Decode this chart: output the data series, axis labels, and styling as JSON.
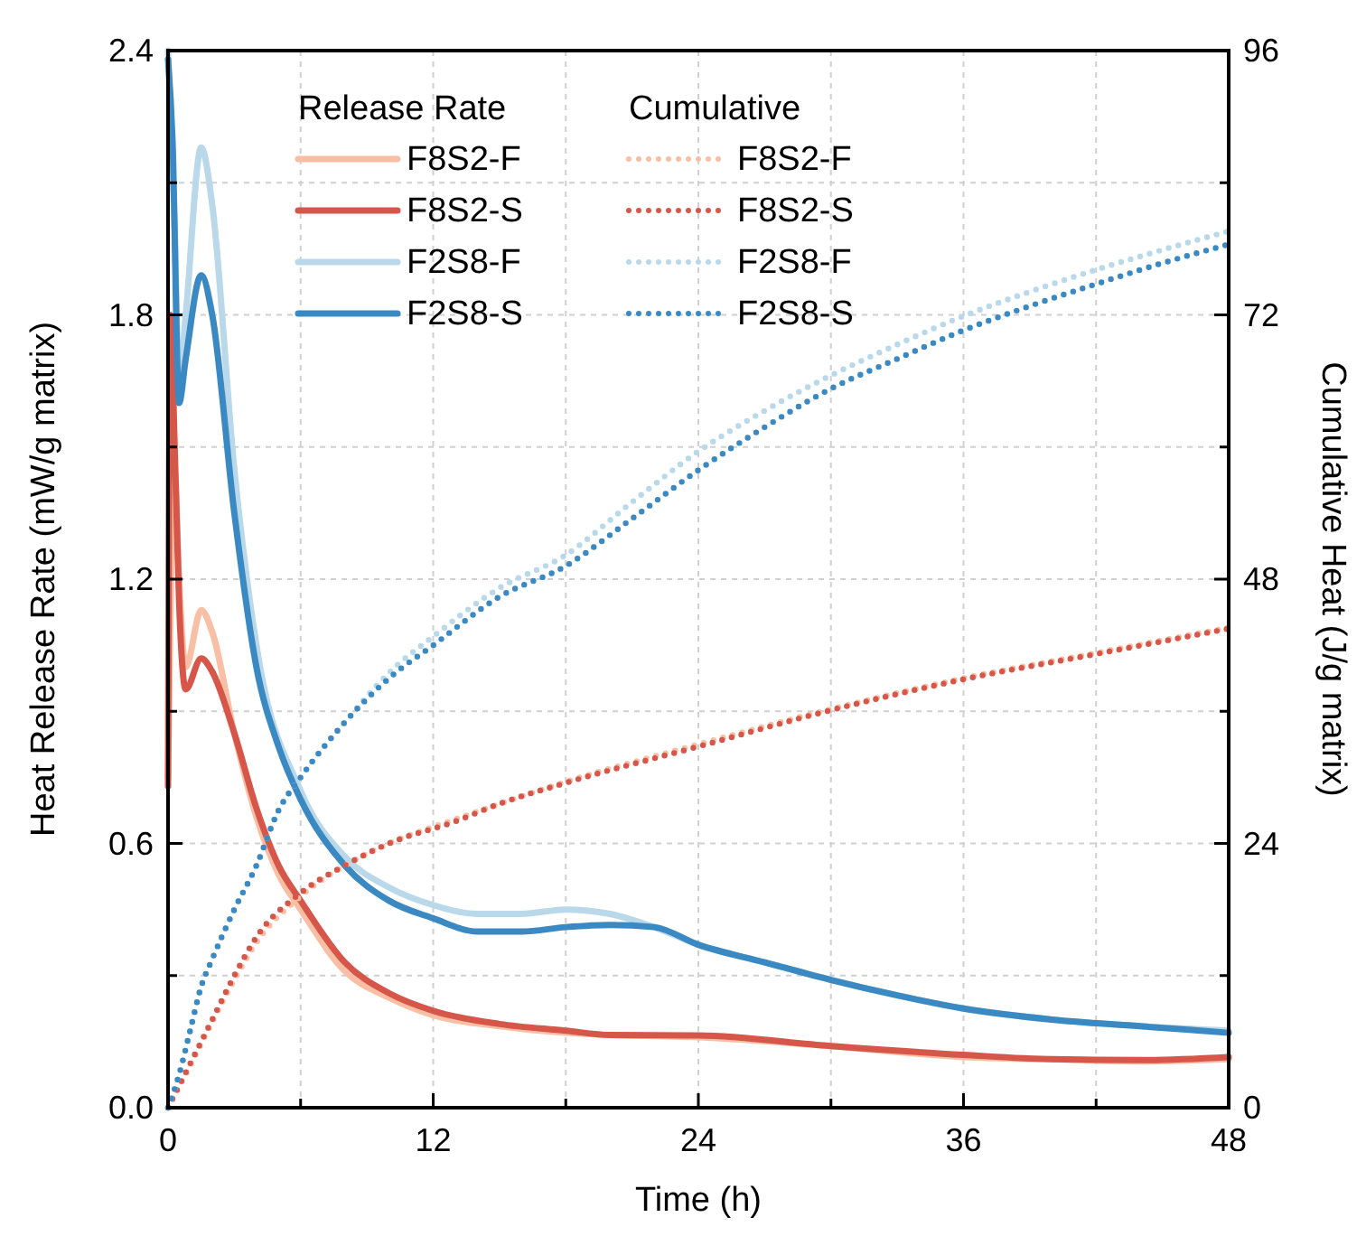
{
  "chart_data": {
    "type": "line",
    "xlabel": "Time (h)",
    "ylabel": "Heat Release Rate (mW/g matrix)",
    "y2label": "Cumulative Heat (J/g matrix)",
    "legend_title": "Release Rate",
    "annotations": [
      "Cumulative"
    ],
    "legend": "top left",
    "grid": true,
    "marker": "none",
    "xlim": [
      0,
      48
    ],
    "xticks": [
      {
        "value": 0,
        "label": "0"
      },
      {
        "value": 6,
        "label": null
      },
      {
        "value": 12,
        "label": "12"
      },
      {
        "value": 18,
        "label": null
      },
      {
        "value": 24,
        "label": "24"
      },
      {
        "value": 30,
        "label": null
      },
      {
        "value": 36,
        "label": "36"
      },
      {
        "value": 42,
        "label": null
      },
      {
        "value": 48,
        "label": "48"
      }
    ],
    "ylim": [
      0,
      2.4
    ],
    "yticks": [
      {
        "value": 0,
        "label": "0.0"
      },
      {
        "value": 0.3,
        "label": null
      },
      {
        "value": 0.6,
        "label": "0.6"
      },
      {
        "value": 0.9,
        "label": null
      },
      {
        "value": 1.2,
        "label": "1.2"
      },
      {
        "value": 1.5,
        "label": null
      },
      {
        "value": 1.8,
        "label": "1.8"
      },
      {
        "value": 2.1,
        "label": null
      },
      {
        "value": 2.4,
        "label": "2.4"
      }
    ],
    "y2lim": [
      0,
      96
    ],
    "y2ticks": [
      0,
      {
        "value": 12,
        "label": null
      },
      24,
      {
        "value": 36,
        "label": null
      },
      48,
      {
        "value": 60,
        "label": null
      },
      72,
      {
        "value": 84,
        "label": null
      },
      96
    ],
    "series": [
      {
        "name": "F8S2-F",
        "color": "#f8bfa4",
        "line_style": "solid",
        "x": [
          0,
          0.1,
          0.3,
          0.5,
          0.8,
          1.5,
          2,
          3,
          4,
          5,
          6,
          8,
          10,
          12,
          15,
          18,
          20,
          24,
          30,
          36,
          40,
          44,
          48
        ],
        "values": [
          0.75,
          null,
          1.45,
          1.2,
          1.0,
          1.13,
          1.08,
          0.85,
          0.66,
          0.53,
          0.45,
          0.31,
          0.25,
          0.21,
          0.185,
          0.17,
          0.165,
          0.16,
          0.14,
          0.115,
          0.11,
          0.105,
          0.11
        ]
      },
      {
        "name": "F8S2-S",
        "color": "#d6564a",
        "line_style": "solid",
        "x": [
          0,
          0.1,
          0.3,
          0.5,
          0.8,
          1.5,
          2,
          3,
          4,
          5,
          6,
          8,
          10,
          12,
          15,
          18,
          20,
          24,
          30,
          36,
          40,
          44,
          48
        ],
        "values": [
          0.73,
          1.8,
          1.5,
          1.15,
          0.95,
          1.02,
          0.99,
          0.85,
          0.68,
          0.55,
          0.47,
          0.33,
          0.26,
          0.22,
          0.19,
          0.175,
          0.165,
          0.164,
          0.14,
          0.12,
          0.11,
          0.108,
          0.115
        ]
      },
      {
        "name": "F2S8-F",
        "color": "#b9d9ea",
        "line_style": "solid",
        "x": [
          0,
          0.3,
          0.5,
          0.8,
          1.5,
          2,
          3,
          4,
          6,
          8,
          10,
          12,
          14,
          16,
          18,
          20,
          22,
          24,
          27,
          30,
          33,
          36,
          40,
          44,
          48
        ],
        "values": [
          2.4,
          2.0,
          1.65,
          1.8,
          2.18,
          2.05,
          1.45,
          1.05,
          0.72,
          0.57,
          0.5,
          0.46,
          0.44,
          0.44,
          0.45,
          0.44,
          0.41,
          0.37,
          0.33,
          0.29,
          0.255,
          0.225,
          0.2,
          0.185,
          0.175
        ]
      },
      {
        "name": "F2S8-S",
        "color": "#3a89c3",
        "line_style": "solid",
        "x": [
          0,
          0.2,
          0.5,
          0.8,
          1.5,
          2,
          3,
          4,
          5,
          6,
          8,
          10,
          12,
          14,
          16,
          18,
          20,
          22,
          24,
          27,
          30,
          33,
          36,
          40,
          44,
          48
        ],
        "values": [
          2.38,
          2.2,
          1.6,
          1.7,
          1.89,
          1.8,
          1.35,
          1.0,
          0.82,
          0.7,
          0.55,
          0.47,
          0.43,
          0.4,
          0.4,
          0.41,
          0.415,
          0.41,
          0.37,
          0.33,
          0.29,
          0.255,
          0.225,
          0.2,
          0.185,
          0.17
        ]
      },
      {
        "name": "F8S2-F",
        "color": "#f8bfa4",
        "line_style": "dotted",
        "axis": "y2",
        "x": [
          0,
          1,
          2,
          3,
          4,
          6,
          8,
          10,
          13,
          15,
          18,
          24,
          30,
          36,
          42,
          48
        ],
        "values": [
          0,
          3.8,
          7.8,
          11.6,
          15,
          19.2,
          22,
          24,
          26.2,
          27.6,
          29.6,
          33,
          36.2,
          39,
          41.3,
          43.6
        ]
      },
      {
        "name": "F8S2-S",
        "color": "#d6564a",
        "line_style": "dotted",
        "axis": "y2",
        "x": [
          0,
          1,
          2,
          3,
          4,
          6,
          8,
          10,
          13,
          15,
          18,
          24,
          30,
          36,
          42,
          48
        ],
        "values": [
          0,
          4,
          8,
          12,
          15.5,
          19.5,
          22,
          24,
          26,
          27.6,
          29.5,
          32.8,
          36.1,
          38.9,
          41.2,
          43.5
        ]
      },
      {
        "name": "F2S8-F",
        "color": "#b9d9ea",
        "line_style": "dotted",
        "axis": "y2",
        "x": [
          0,
          0.5,
          1,
          1.5,
          2,
          3,
          4,
          5,
          6,
          8,
          10,
          12,
          15,
          18,
          21,
          24,
          27,
          30,
          33,
          36,
          39,
          42,
          45,
          48
        ],
        "values": [
          0,
          3,
          7,
          11,
          13.5,
          18,
          22,
          27,
          30,
          35,
          39.5,
          42.8,
          47.2,
          50.2,
          55,
          59.6,
          63.3,
          66.5,
          69.3,
          71.9,
          74.1,
          76.1,
          77.9,
          79.6
        ]
      },
      {
        "name": "F2S8-S",
        "color": "#3a89c3",
        "line_style": "dotted",
        "axis": "y2",
        "x": [
          0,
          0.5,
          1,
          1.5,
          2,
          3,
          4,
          5,
          6,
          8,
          10,
          12,
          15,
          18,
          21,
          24,
          27,
          30,
          33,
          36,
          39,
          42,
          45,
          48
        ],
        "values": [
          0,
          3,
          7,
          11,
          13.5,
          18,
          22,
          27,
          30,
          35,
          39,
          42,
          46.4,
          49.2,
          53.5,
          57.9,
          61.8,
          65.3,
          68,
          70.6,
          72.8,
          74.8,
          76.7,
          78.4
        ]
      }
    ]
  }
}
